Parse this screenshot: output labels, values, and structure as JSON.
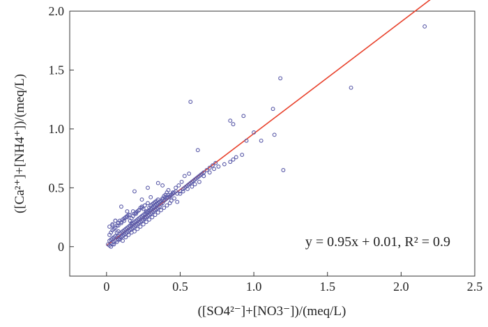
{
  "chart_data": {
    "type": "scatter",
    "xlabel": "([SO4²⁻]+[NO3⁻])/(meq/L)",
    "ylabel": "([Ca²⁺]+[NH4⁺])/(meq/L)",
    "xlim": [
      -0.25,
      2.5
    ],
    "ylim": [
      -0.25,
      2.0
    ],
    "xticks": [
      "0",
      "0.5",
      "1.0",
      "1.5",
      "2.0",
      "2.5"
    ],
    "yticks": [
      "0",
      "0.5",
      "1.0",
      "1.5",
      "2.0"
    ],
    "annotation": "y = 0.95x + 0.01, R² = 0.9",
    "grid": false,
    "colors": {
      "points": "#5a5aa8",
      "fit_line": "#e8402a"
    },
    "fit_line": {
      "slope": 0.95,
      "intercept": 0.01,
      "x_range": [
        0,
        2.2
      ]
    },
    "series": [
      {
        "x": [
          0.01,
          0.02,
          0.02,
          0.03,
          0.03,
          0.04,
          0.04,
          0.05,
          0.05,
          0.06,
          0.06,
          0.07,
          0.07,
          0.08,
          0.08,
          0.09,
          0.09,
          0.1,
          0.1,
          0.11,
          0.11,
          0.12,
          0.12,
          0.13,
          0.13,
          0.14,
          0.14,
          0.15,
          0.15,
          0.16,
          0.16,
          0.17,
          0.17,
          0.18,
          0.18,
          0.19,
          0.19,
          0.2,
          0.2,
          0.21,
          0.21,
          0.22,
          0.22,
          0.23,
          0.23,
          0.24,
          0.24,
          0.25,
          0.25,
          0.26,
          0.26,
          0.27,
          0.27,
          0.28,
          0.28,
          0.29,
          0.29,
          0.3,
          0.3,
          0.31,
          0.31,
          0.32,
          0.32,
          0.33,
          0.33,
          0.34,
          0.34,
          0.35,
          0.35,
          0.36,
          0.36,
          0.37,
          0.38,
          0.39,
          0.4,
          0.41,
          0.42,
          0.43,
          0.44,
          0.45,
          0.46,
          0.47,
          0.02,
          0.03,
          0.04,
          0.05,
          0.06,
          0.07,
          0.08,
          0.09,
          0.1,
          0.11,
          0.12,
          0.13,
          0.14,
          0.15,
          0.16,
          0.17,
          0.18,
          0.19,
          0.2,
          0.21,
          0.22,
          0.23,
          0.24,
          0.25,
          0.26,
          0.27,
          0.28,
          0.29,
          0.3,
          0.31,
          0.32,
          0.33,
          0.34,
          0.35,
          0.36,
          0.37,
          0.38,
          0.39,
          0.4,
          0.41,
          0.42,
          0.43,
          0.44,
          0.45,
          0.03,
          0.05,
          0.07,
          0.09,
          0.11,
          0.13,
          0.15,
          0.17,
          0.19,
          0.21,
          0.23,
          0.25,
          0.27,
          0.29,
          0.31,
          0.33,
          0.35,
          0.37,
          0.39,
          0.41,
          0.43,
          0.02,
          0.04,
          0.06,
          0.08,
          0.1,
          0.12,
          0.14,
          0.16,
          0.18,
          0.2,
          0.22,
          0.24,
          0.26,
          0.28,
          0.3,
          0.32,
          0.34,
          0.36,
          0.38,
          0.4,
          0.42,
          0.44,
          0.46,
          0.48,
          0.5,
          0.52,
          0.54,
          0.56,
          0.58,
          0.6,
          0.62,
          0.64,
          0.66,
          0.68,
          0.7,
          0.72,
          0.74,
          0.47,
          0.49,
          0.51,
          0.53,
          0.55,
          0.57,
          0.59,
          0.61,
          0.63,
          0.65,
          0.5,
          0.52,
          0.55,
          0.58,
          0.6,
          0.63,
          0.66,
          0.7,
          0.73,
          0.76,
          0.8,
          0.84,
          0.86,
          0.88,
          0.92,
          0.95,
          1.0,
          1.05,
          1.13,
          1.14,
          1.2,
          1.18,
          0.57,
          0.62,
          0.53,
          0.86,
          0.93,
          0.84,
          0.38,
          0.35,
          0.3,
          0.1,
          0.14,
          0.06,
          0.04,
          0.19,
          0.24,
          0.28,
          0.45,
          0.66,
          0.56,
          0.48,
          0.26,
          0.17,
          0.08,
          0.12,
          1.66,
          2.16
        ],
        "y": [
          0.02,
          0.05,
          0.01,
          0.06,
          0.03,
          0.07,
          0.02,
          0.08,
          0.04,
          0.09,
          0.05,
          0.08,
          0.12,
          0.09,
          0.06,
          0.11,
          0.07,
          0.12,
          0.08,
          0.13,
          0.09,
          0.14,
          0.1,
          0.15,
          0.11,
          0.16,
          0.12,
          0.17,
          0.13,
          0.18,
          0.14,
          0.19,
          0.15,
          0.2,
          0.16,
          0.21,
          0.17,
          0.22,
          0.18,
          0.23,
          0.19,
          0.24,
          0.2,
          0.25,
          0.21,
          0.26,
          0.22,
          0.27,
          0.23,
          0.28,
          0.24,
          0.29,
          0.25,
          0.3,
          0.26,
          0.31,
          0.27,
          0.32,
          0.28,
          0.33,
          0.29,
          0.34,
          0.3,
          0.35,
          0.31,
          0.36,
          0.32,
          0.37,
          0.33,
          0.38,
          0.34,
          0.36,
          0.37,
          0.39,
          0.4,
          0.41,
          0.42,
          0.43,
          0.44,
          0.45,
          0.46,
          0.47,
          0.1,
          0.12,
          0.14,
          0.15,
          0.16,
          0.18,
          0.2,
          0.22,
          0.21,
          0.23,
          0.24,
          0.25,
          0.26,
          0.27,
          0.22,
          0.24,
          0.26,
          0.28,
          0.29,
          0.3,
          0.31,
          0.33,
          0.34,
          0.32,
          0.35,
          0.3,
          0.29,
          0.33,
          0.35,
          0.36,
          0.37,
          0.38,
          0.39,
          0.4,
          0.38,
          0.39,
          0.41,
          0.43,
          0.44,
          0.46,
          0.48,
          0.42,
          0.44,
          0.46,
          0.0,
          0.02,
          0.04,
          0.06,
          0.05,
          0.08,
          0.1,
          0.12,
          0.13,
          0.15,
          0.17,
          0.19,
          0.21,
          0.23,
          0.25,
          0.27,
          0.29,
          0.31,
          0.33,
          0.35,
          0.37,
          0.17,
          0.19,
          0.22,
          0.18,
          0.2,
          0.22,
          0.25,
          0.27,
          0.3,
          0.28,
          0.31,
          0.33,
          0.35,
          0.37,
          0.32,
          0.34,
          0.36,
          0.38,
          0.4,
          0.42,
          0.44,
          0.39,
          0.41,
          0.45,
          0.47,
          0.49,
          0.51,
          0.53,
          0.55,
          0.57,
          0.59,
          0.61,
          0.63,
          0.65,
          0.67,
          0.69,
          0.71,
          0.5,
          0.52,
          0.55,
          0.5,
          0.52,
          0.54,
          0.56,
          0.58,
          0.6,
          0.62,
          0.45,
          0.47,
          0.49,
          0.51,
          0.53,
          0.55,
          0.6,
          0.63,
          0.66,
          0.68,
          0.7,
          0.72,
          0.74,
          0.76,
          0.78,
          0.9,
          0.97,
          0.9,
          1.17,
          0.95,
          0.65,
          1.43,
          1.23,
          0.82,
          0.6,
          1.04,
          1.11,
          1.07,
          0.52,
          0.54,
          0.42,
          0.34,
          0.3,
          0.22,
          0.18,
          0.47,
          0.4,
          0.5,
          0.45,
          0.6,
          0.62,
          0.38,
          0.25,
          0.2,
          0.13,
          0.1,
          1.35,
          1.87
        ]
      }
    ]
  }
}
